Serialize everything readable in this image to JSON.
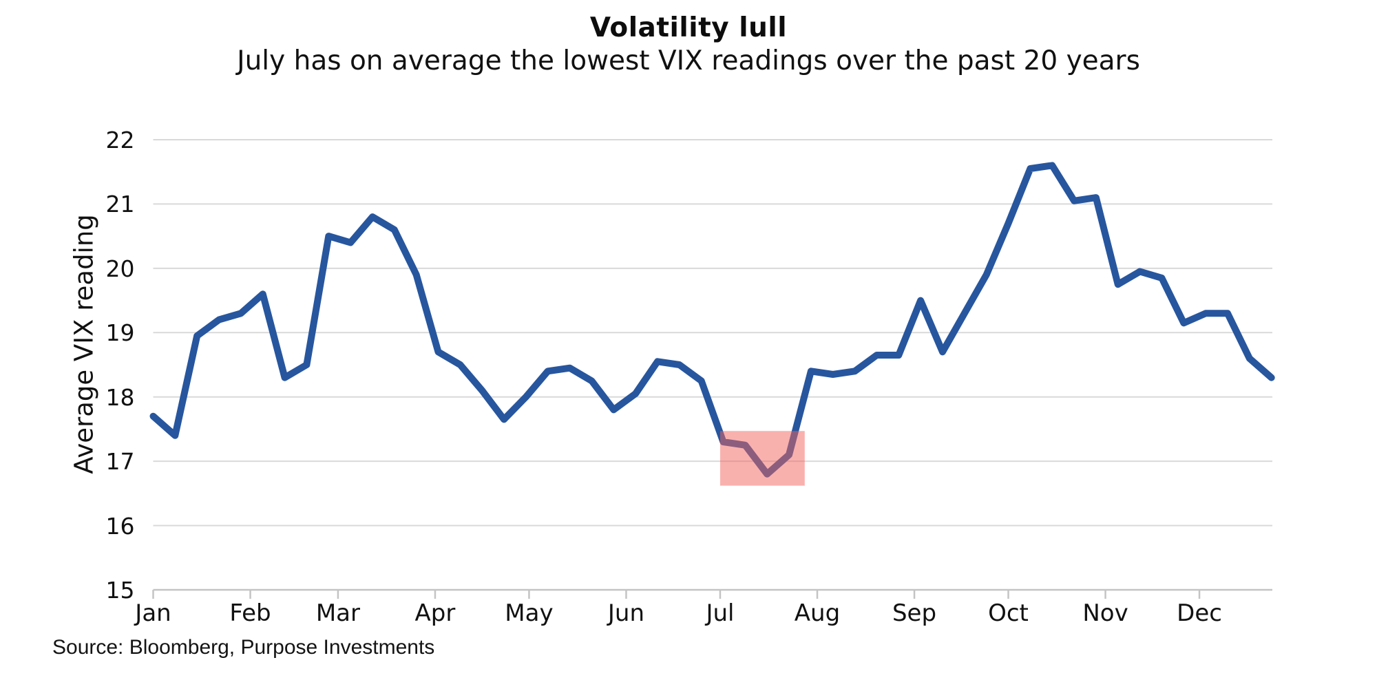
{
  "chart_data": {
    "type": "line",
    "title": "Volatility lull",
    "subtitle": "July has on average the lowest VIX readings over the past 20 years",
    "ylabel": "Average VIX reading",
    "source": "Source: Bloomberg, Purpose Investments",
    "x_months": [
      "Jan",
      "Feb",
      "Mar",
      "Apr",
      "May",
      "Jun",
      "Jul",
      "Aug",
      "Sep",
      "Oct",
      "Nov",
      "Dec"
    ],
    "month_start_days": [
      0,
      31,
      59,
      90,
      120,
      151,
      181,
      212,
      243,
      273,
      304,
      334
    ],
    "week_interval_days": 7,
    "weekly_values": [
      17.7,
      17.4,
      18.95,
      19.2,
      19.3,
      19.6,
      18.3,
      18.5,
      20.5,
      20.4,
      20.8,
      20.6,
      19.9,
      18.7,
      18.5,
      18.1,
      17.65,
      18.0,
      18.4,
      18.45,
      18.25,
      17.8,
      18.05,
      18.55,
      18.5,
      18.25,
      17.3,
      17.25,
      16.8,
      17.1,
      18.4,
      18.35,
      18.4,
      18.65,
      18.65,
      19.5,
      18.7,
      19.3,
      19.9,
      20.7,
      21.55,
      21.6,
      21.05,
      21.1,
      19.75,
      19.95,
      19.85,
      19.15,
      19.3,
      19.3,
      18.6,
      18.3
    ],
    "ylim": [
      15,
      22
    ],
    "y_ticks": [
      15,
      16,
      17,
      18,
      19,
      20,
      21,
      22
    ],
    "grid": "horizontal",
    "legend": "none",
    "line_color": "#27569E",
    "grid_color": "#d9d9d9",
    "axis_color": "#c4c4c4",
    "highlight": {
      "day_start": 181,
      "day_end": 208,
      "value_low": 16.62,
      "value_high": 17.47,
      "color": "rgba(243,100,94,0.5)"
    }
  }
}
